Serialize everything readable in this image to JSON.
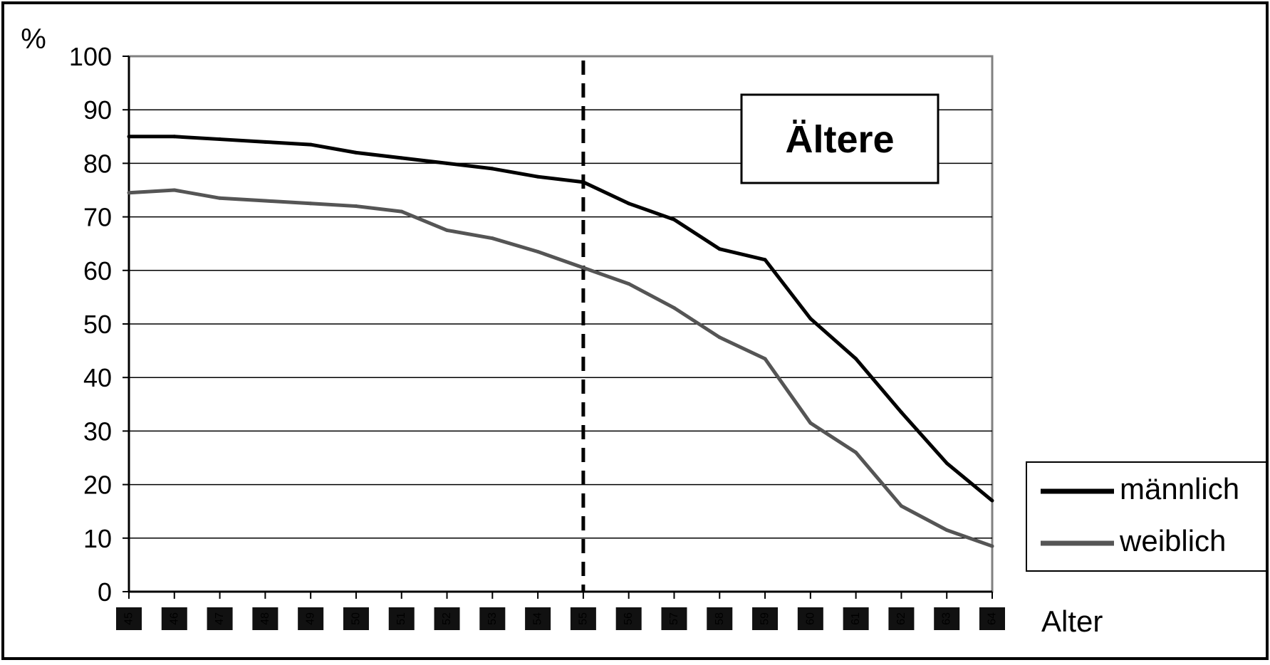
{
  "chart_data": {
    "type": "line",
    "title": "",
    "ylabel": "%",
    "xlabel": "Alter",
    "ylim": [
      0,
      100
    ],
    "yticks": [
      0,
      10,
      20,
      30,
      40,
      50,
      60,
      70,
      80,
      90,
      100
    ],
    "x": [
      45,
      46,
      47,
      48,
      49,
      50,
      51,
      52,
      53,
      54,
      55,
      56,
      57,
      58,
      59,
      60,
      61,
      62,
      63,
      64
    ],
    "xtick_labels": [
      "45",
      "46",
      "47",
      "48",
      "49",
      "50",
      "51",
      "52",
      "53",
      "54",
      "55",
      "56",
      "57",
      "58",
      "59",
      "60",
      "61",
      "62",
      "63",
      "64"
    ],
    "series": [
      {
        "name": "männlich",
        "color": "#000000",
        "values": [
          85,
          85,
          84.5,
          84,
          83.5,
          82,
          81,
          80,
          79,
          77.5,
          76.5,
          72.5,
          69.5,
          64,
          62,
          51,
          43.5,
          33.5,
          24,
          17
        ]
      },
      {
        "name": "weiblich",
        "color": "#555555",
        "values": [
          74.5,
          75,
          73.5,
          73,
          72.5,
          72,
          71,
          67.5,
          66,
          63.5,
          60.5,
          57.5,
          53,
          47.5,
          43.5,
          31.5,
          26,
          16,
          11.5,
          8.5
        ]
      }
    ],
    "reference_line": {
      "x": 55,
      "style": "dashed",
      "color": "#000000"
    },
    "annotation": "Ältere",
    "grid": true,
    "legend_position": "right-bottom"
  }
}
